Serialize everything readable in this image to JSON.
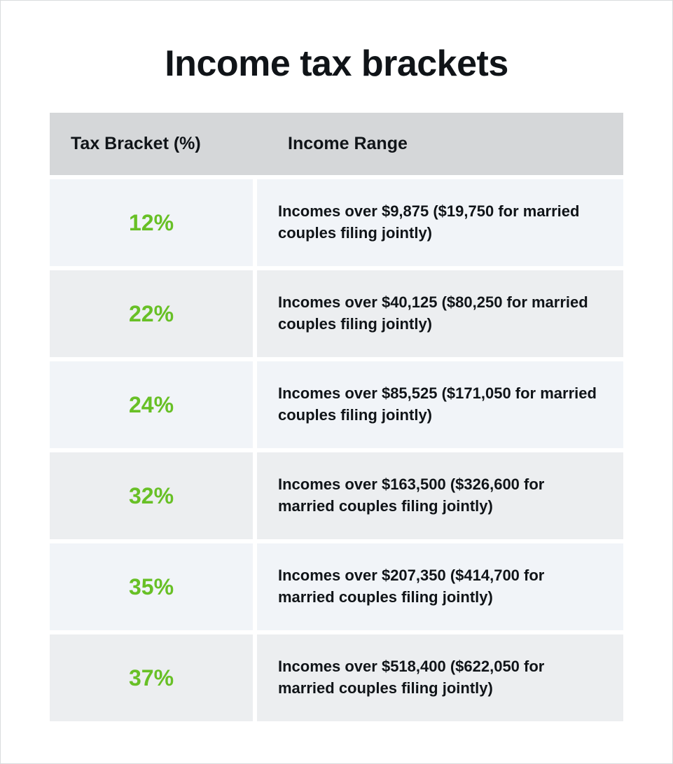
{
  "title": "Income tax brackets",
  "columns": {
    "left": "Tax Bracket (%)",
    "right": "Income Range"
  },
  "accent_color": "#68c026",
  "header_bg": "#d5d7d9",
  "row_bg_odd": "#f1f4f8",
  "row_bg_even": "#eceef0",
  "text_color": "#101418",
  "rows": [
    {
      "bracket": "12%",
      "range": "Incomes over $9,875 ($19,750 for married couples filing jointly)"
    },
    {
      "bracket": "22%",
      "range": "Incomes over $40,125 ($80,250 for married couples filing jointly)"
    },
    {
      "bracket": "24%",
      "range": "Incomes over $85,525 ($171,050 for married couples filing jointly)"
    },
    {
      "bracket": "32%",
      "range": "Incomes over $163,500 ($326,600 for married couples filing jointly)"
    },
    {
      "bracket": "35%",
      "range": "Incomes over $207,350 ($414,700 for married couples filing jointly)"
    },
    {
      "bracket": "37%",
      "range": "Incomes over $518,400 ($622,050 for married couples filing jointly)"
    }
  ]
}
